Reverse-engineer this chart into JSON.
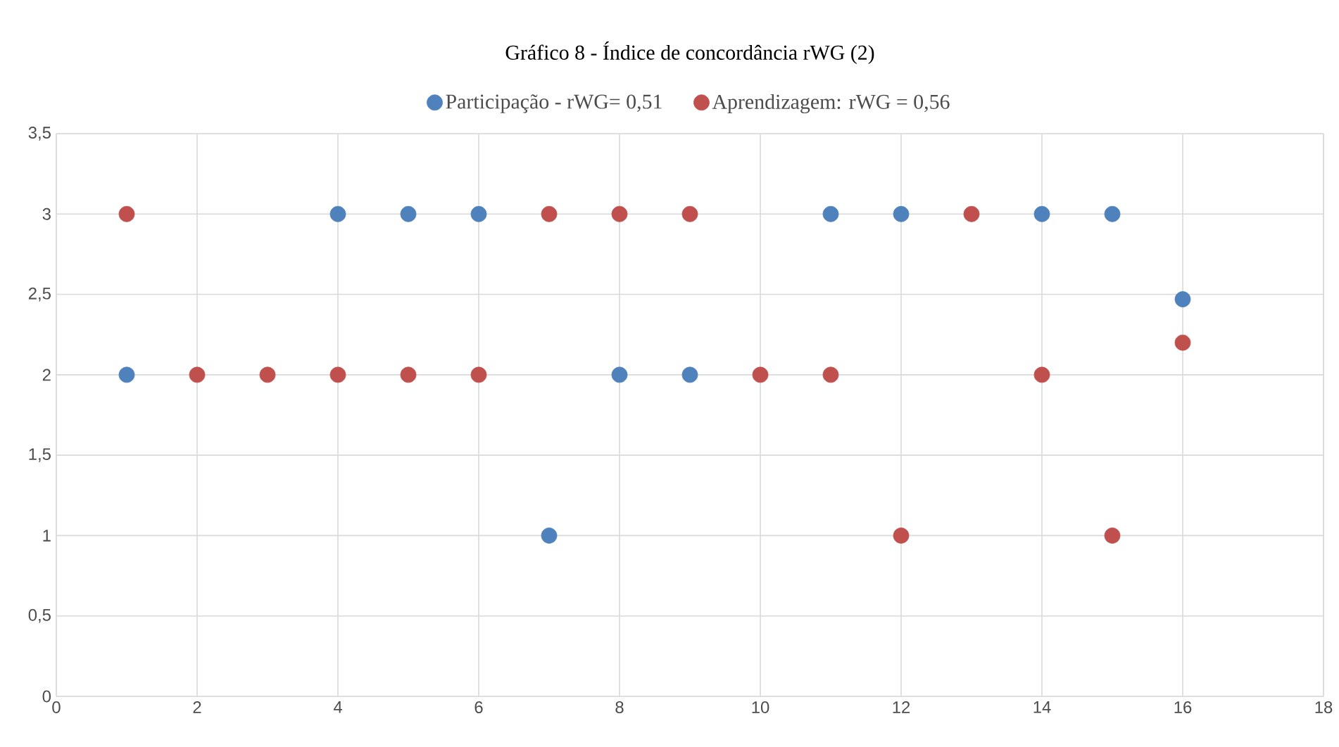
{
  "chart_data": {
    "type": "scatter",
    "title": "Gráfico 8 - Índice de concordância rWG (2)",
    "x": [
      1,
      2,
      3,
      4,
      5,
      6,
      7,
      8,
      9,
      10,
      11,
      12,
      13,
      14,
      15,
      16
    ],
    "series": [
      {
        "name": "Participação - rWG= 0,51",
        "color": "#4f81bd",
        "values": [
          2,
          null,
          null,
          3,
          3,
          3,
          1,
          2,
          2,
          null,
          3,
          3,
          null,
          3,
          3,
          2.47
        ]
      },
      {
        "name": "Aprendizagem: rWG = 0,56",
        "color": "#c0504d",
        "values": [
          3,
          2,
          2,
          2,
          2,
          2,
          3,
          3,
          3,
          2,
          2,
          1,
          3,
          2,
          1,
          2.2
        ]
      }
    ],
    "xlim": [
      0,
      18
    ],
    "xticks": [
      0,
      2,
      4,
      6,
      8,
      10,
      12,
      14,
      16,
      18
    ],
    "ylim": [
      0,
      3.5
    ],
    "yticks": [
      0,
      {
        "value": 0.5,
        "label": "0,5"
      },
      1,
      {
        "value": 1.5,
        "label": "1,5"
      },
      2,
      {
        "value": 2.5,
        "label": "2,5"
      },
      3,
      {
        "value": 3.5,
        "label": "3,5"
      }
    ],
    "grid": true,
    "legend": "top",
    "marker": "circle"
  }
}
